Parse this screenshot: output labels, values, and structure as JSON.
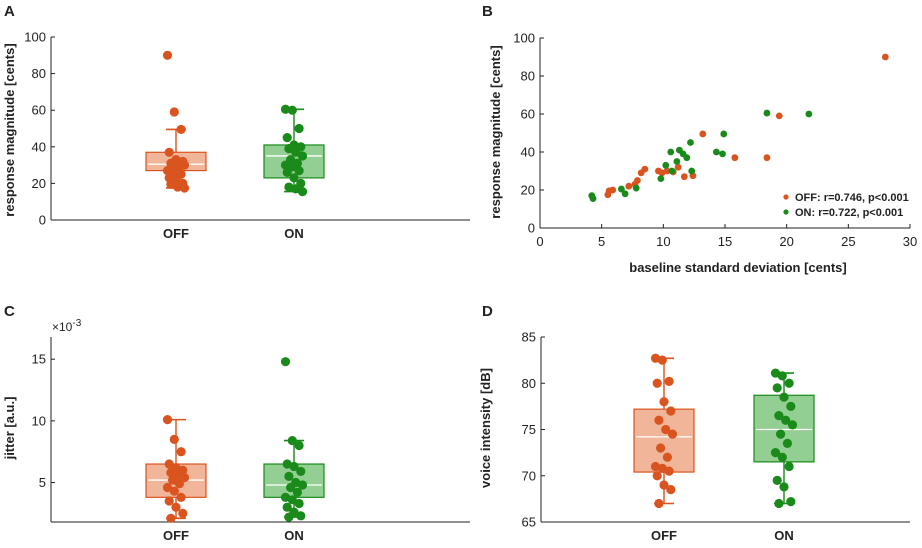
{
  "colors": {
    "off": "#d9541e",
    "on": "#1a8a1a",
    "off_fill": "#f1b69a",
    "on_fill": "#93cf93",
    "axis": "#222222"
  },
  "chart_data": [
    {
      "panel": "A",
      "type": "box",
      "ylabel": "response magnitude [cents]",
      "ylim": [
        0,
        100
      ],
      "yticks": [
        0,
        20,
        40,
        60,
        80,
        100
      ],
      "categories": [
        "OFF",
        "ON"
      ],
      "series": [
        {
          "name": "OFF",
          "color_key": "off",
          "box": {
            "whisker_low": 17.5,
            "q1": 27,
            "median": 30.5,
            "q3": 37,
            "whisker_high": 49.5
          },
          "points": [
            90,
            59,
            49.5,
            37,
            33,
            32,
            31,
            31,
            30,
            29.5,
            29,
            27,
            26,
            25,
            23,
            22,
            20,
            19.5,
            18,
            17.5
          ]
        },
        {
          "name": "ON",
          "color_key": "on",
          "box": {
            "whisker_low": 15.5,
            "q1": 23,
            "median": 35,
            "q3": 41,
            "whisker_high": 60.5
          },
          "points": [
            60.5,
            60,
            50,
            45,
            41,
            40,
            39,
            37,
            35,
            33,
            31,
            30,
            29,
            27,
            26,
            23,
            20,
            18,
            17,
            15.5
          ]
        }
      ]
    },
    {
      "panel": "B",
      "type": "scatter",
      "xlabel": "baseline standard deviation [cents]",
      "ylabel": "response magnitude [cents]",
      "xlim": [
        0,
        30
      ],
      "ylim": [
        0,
        100
      ],
      "xticks": [
        0,
        5,
        10,
        15,
        20,
        25,
        30
      ],
      "yticks": [
        0,
        20,
        40,
        60,
        80,
        100
      ],
      "series": [
        {
          "name": "OFF",
          "color_key": "off",
          "legend": "OFF: r=0.746, p<0.001",
          "points": [
            [
              5.5,
              17.5
            ],
            [
              5.6,
              19.5
            ],
            [
              5.9,
              20
            ],
            [
              7.2,
              22
            ],
            [
              7.7,
              23
            ],
            [
              7.9,
              25
            ],
            [
              8.2,
              29
            ],
            [
              8.5,
              31
            ],
            [
              9.6,
              30
            ],
            [
              9.9,
              29
            ],
            [
              10.3,
              30
            ],
            [
              10.8,
              29.5
            ],
            [
              11.2,
              32
            ],
            [
              11.7,
              27
            ],
            [
              12.4,
              27.5
            ],
            [
              13.2,
              49.5
            ],
            [
              15.8,
              37
            ],
            [
              18.4,
              37
            ],
            [
              19.4,
              59
            ],
            [
              28,
              90
            ]
          ]
        },
        {
          "name": "ON",
          "color_key": "on",
          "legend": "ON: r=0.722, p<0.001",
          "points": [
            [
              4.2,
              17
            ],
            [
              4.3,
              15.5
            ],
            [
              6.6,
              20.5
            ],
            [
              6.9,
              18
            ],
            [
              7.8,
              21
            ],
            [
              9.8,
              26
            ],
            [
              10.2,
              33
            ],
            [
              10.7,
              30
            ],
            [
              10.6,
              40
            ],
            [
              11.1,
              35
            ],
            [
              11.3,
              41
            ],
            [
              11.6,
              39
            ],
            [
              11.9,
              37
            ],
            [
              12.2,
              45
            ],
            [
              12.3,
              30
            ],
            [
              14.3,
              40
            ],
            [
              14.8,
              39
            ],
            [
              14.9,
              49.5
            ],
            [
              18.4,
              60.5
            ],
            [
              21.8,
              60
            ]
          ]
        }
      ]
    },
    {
      "panel": "C",
      "type": "box",
      "ylabel": "jitter [a.u.]",
      "exponent_label": "×10",
      "exponent_power": "-3",
      "ylim": [
        1.8,
        16.8
      ],
      "yticks": [
        5,
        10,
        15
      ],
      "categories": [
        "OFF",
        "ON"
      ],
      "series": [
        {
          "name": "OFF",
          "color_key": "off",
          "box": {
            "whisker_low": 2.1,
            "q1": 3.8,
            "median": 5.2,
            "q3": 6.5,
            "whisker_high": 10.1
          },
          "points": [
            10.1,
            8.5,
            7.5,
            6.5,
            6.2,
            6.0,
            5.8,
            5.6,
            5.4,
            5.2,
            4.9,
            4.6,
            4.3,
            3.8,
            3.5,
            3.0,
            2.5,
            2.1
          ]
        },
        {
          "name": "ON",
          "color_key": "on",
          "box": {
            "whisker_low": 2.2,
            "q1": 3.8,
            "median": 4.8,
            "q3": 6.5,
            "whisker_high": 8.4
          },
          "points": [
            14.8,
            8.4,
            8.0,
            6.5,
            6.3,
            5.9,
            5.5,
            5.0,
            4.8,
            4.6,
            4.2,
            3.8,
            3.6,
            3.3,
            3.0,
            2.6,
            2.3,
            2.2
          ]
        }
      ]
    },
    {
      "panel": "D",
      "type": "box",
      "ylabel": "voice intensity [dB]",
      "ylim": [
        65,
        85
      ],
      "yticks": [
        65,
        70,
        75,
        80,
        85
      ],
      "categories": [
        "OFF",
        "ON"
      ],
      "series": [
        {
          "name": "OFF",
          "color_key": "off",
          "box": {
            "whisker_low": 67,
            "q1": 70.4,
            "median": 74.2,
            "q3": 77.2,
            "whisker_high": 82.7
          },
          "points": [
            82.7,
            82.5,
            80.2,
            80.0,
            78.0,
            77.0,
            76.0,
            75.0,
            74.5,
            73.0,
            72.0,
            71.0,
            70.8,
            70.5,
            70.0,
            69.0,
            68.5,
            67.0
          ]
        },
        {
          "name": "ON",
          "color_key": "on",
          "box": {
            "whisker_low": 67,
            "q1": 71.5,
            "median": 75.0,
            "q3": 78.7,
            "whisker_high": 81.1
          },
          "points": [
            81.1,
            80.8,
            80.0,
            79.5,
            78.5,
            77.5,
            76.5,
            76.0,
            75.5,
            74.5,
            73.5,
            72.5,
            72.0,
            71.0,
            69.5,
            68.8,
            67.2,
            67.0
          ]
        }
      ]
    }
  ]
}
